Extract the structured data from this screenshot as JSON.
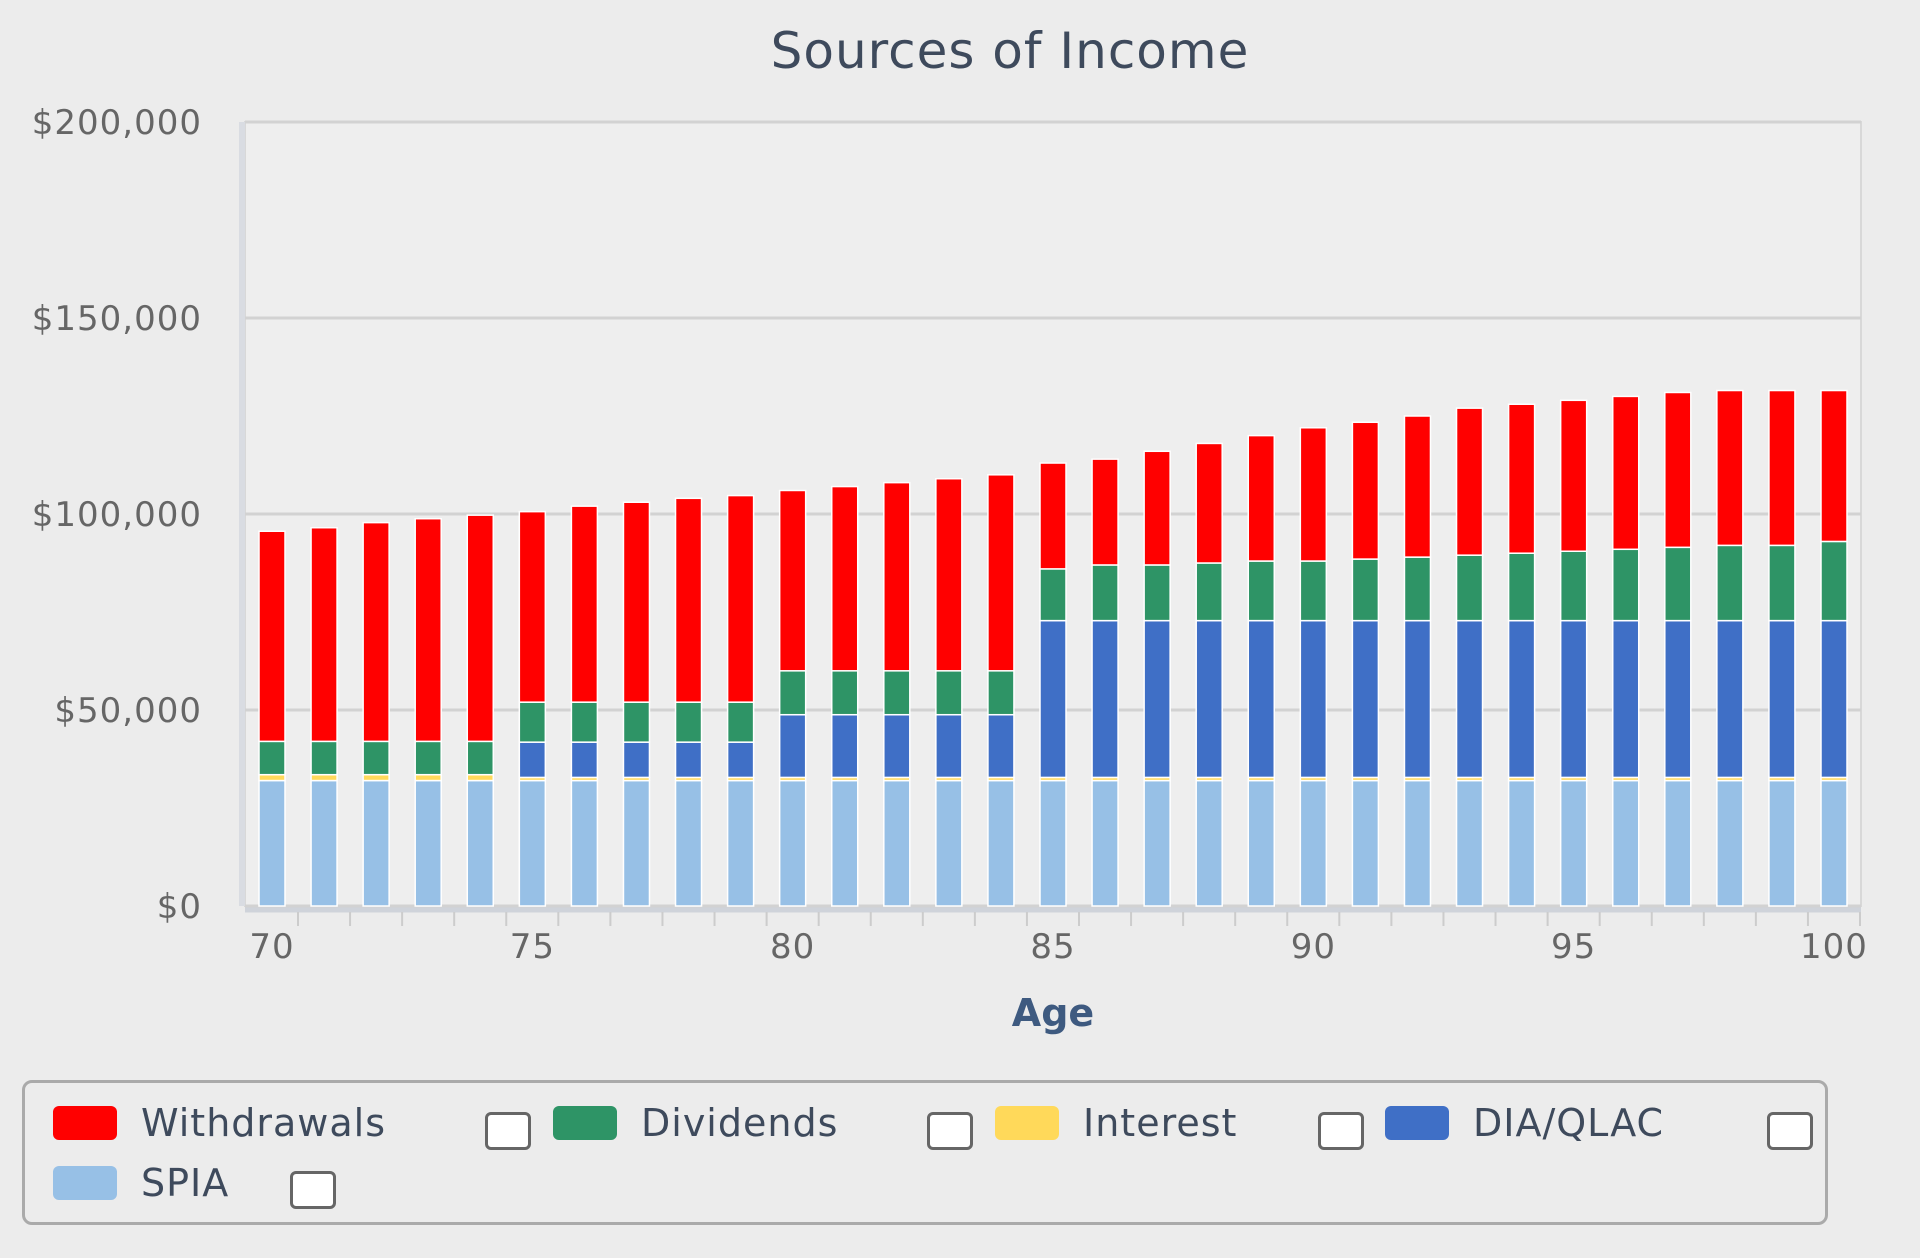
{
  "chart_data": {
    "type": "bar",
    "stacked": true,
    "title": "Sources of Income",
    "xlabel": "Age",
    "ylabel": "",
    "ylim": [
      0,
      200000
    ],
    "yticks": [
      "$0",
      "$50,000",
      "$100,000",
      "$150,000",
      "$200,000"
    ],
    "ytick_values": [
      0,
      50000,
      100000,
      150000,
      200000
    ],
    "xticks": [
      "70",
      "75",
      "80",
      "85",
      "90",
      "95",
      "100"
    ],
    "grid": true,
    "legend_position": "bottom",
    "categories": [
      70,
      71,
      72,
      73,
      74,
      75,
      76,
      77,
      78,
      79,
      80,
      81,
      82,
      83,
      84,
      85,
      86,
      87,
      88,
      89,
      90,
      91,
      92,
      93,
      94,
      95,
      96,
      97,
      98,
      99,
      100
    ],
    "series": [
      {
        "name": "SPIA",
        "color": "#97c0e6",
        "values": [
          32000,
          32000,
          32000,
          32000,
          32000,
          32000,
          32000,
          32000,
          32000,
          32000,
          32000,
          32000,
          32000,
          32000,
          32000,
          32000,
          32000,
          32000,
          32000,
          32000,
          32000,
          32000,
          32000,
          32000,
          32000,
          32000,
          32000,
          32000,
          32000,
          32000,
          32000
        ]
      },
      {
        "name": "Interest",
        "color": "#ffd95a",
        "values": [
          1500,
          1500,
          1500,
          1500,
          1500,
          800,
          800,
          800,
          800,
          800,
          800,
          800,
          800,
          800,
          800,
          800,
          800,
          800,
          800,
          800,
          800,
          800,
          800,
          800,
          800,
          800,
          800,
          800,
          800,
          800,
          800
        ]
      },
      {
        "name": "DIA/QLAC",
        "color": "#3f6fc6",
        "values": [
          0,
          0,
          0,
          0,
          0,
          9000,
          9000,
          9000,
          9000,
          9000,
          16000,
          16000,
          16000,
          16000,
          16000,
          40000,
          40000,
          40000,
          40000,
          40000,
          40000,
          40000,
          40000,
          40000,
          40000,
          40000,
          40000,
          40000,
          40000,
          40000,
          40000
        ]
      },
      {
        "name": "Dividends",
        "color": "#2e9466",
        "values": [
          8500,
          8500,
          8500,
          8500,
          8500,
          10200,
          10200,
          10200,
          10200,
          10200,
          11200,
          11200,
          11200,
          11200,
          11200,
          13200,
          14200,
          14200,
          14700,
          15200,
          15200,
          15700,
          16200,
          16700,
          17200,
          17700,
          18200,
          18700,
          19200,
          19200,
          20200
        ]
      },
      {
        "name": "Withdrawals",
        "color": "#ff0000",
        "values": [
          53600,
          54500,
          55800,
          56800,
          57700,
          48600,
          50000,
          51000,
          52000,
          52700,
          46000,
          47000,
          48000,
          49000,
          50000,
          27000,
          27000,
          29000,
          30500,
          32000,
          34000,
          34900,
          36000,
          37500,
          38000,
          38500,
          39000,
          39500,
          39500,
          39500,
          38500
        ]
      }
    ]
  },
  "legend": {
    "items": [
      {
        "label": "Withdrawals",
        "color": "#ff0000"
      },
      {
        "label": "Dividends",
        "color": "#2e9466"
      },
      {
        "label": "Interest",
        "color": "#ffd95a"
      },
      {
        "label": "DIA/QLAC",
        "color": "#3f6fc6"
      },
      {
        "label": "SPIA",
        "color": "#97c0e6"
      }
    ]
  }
}
